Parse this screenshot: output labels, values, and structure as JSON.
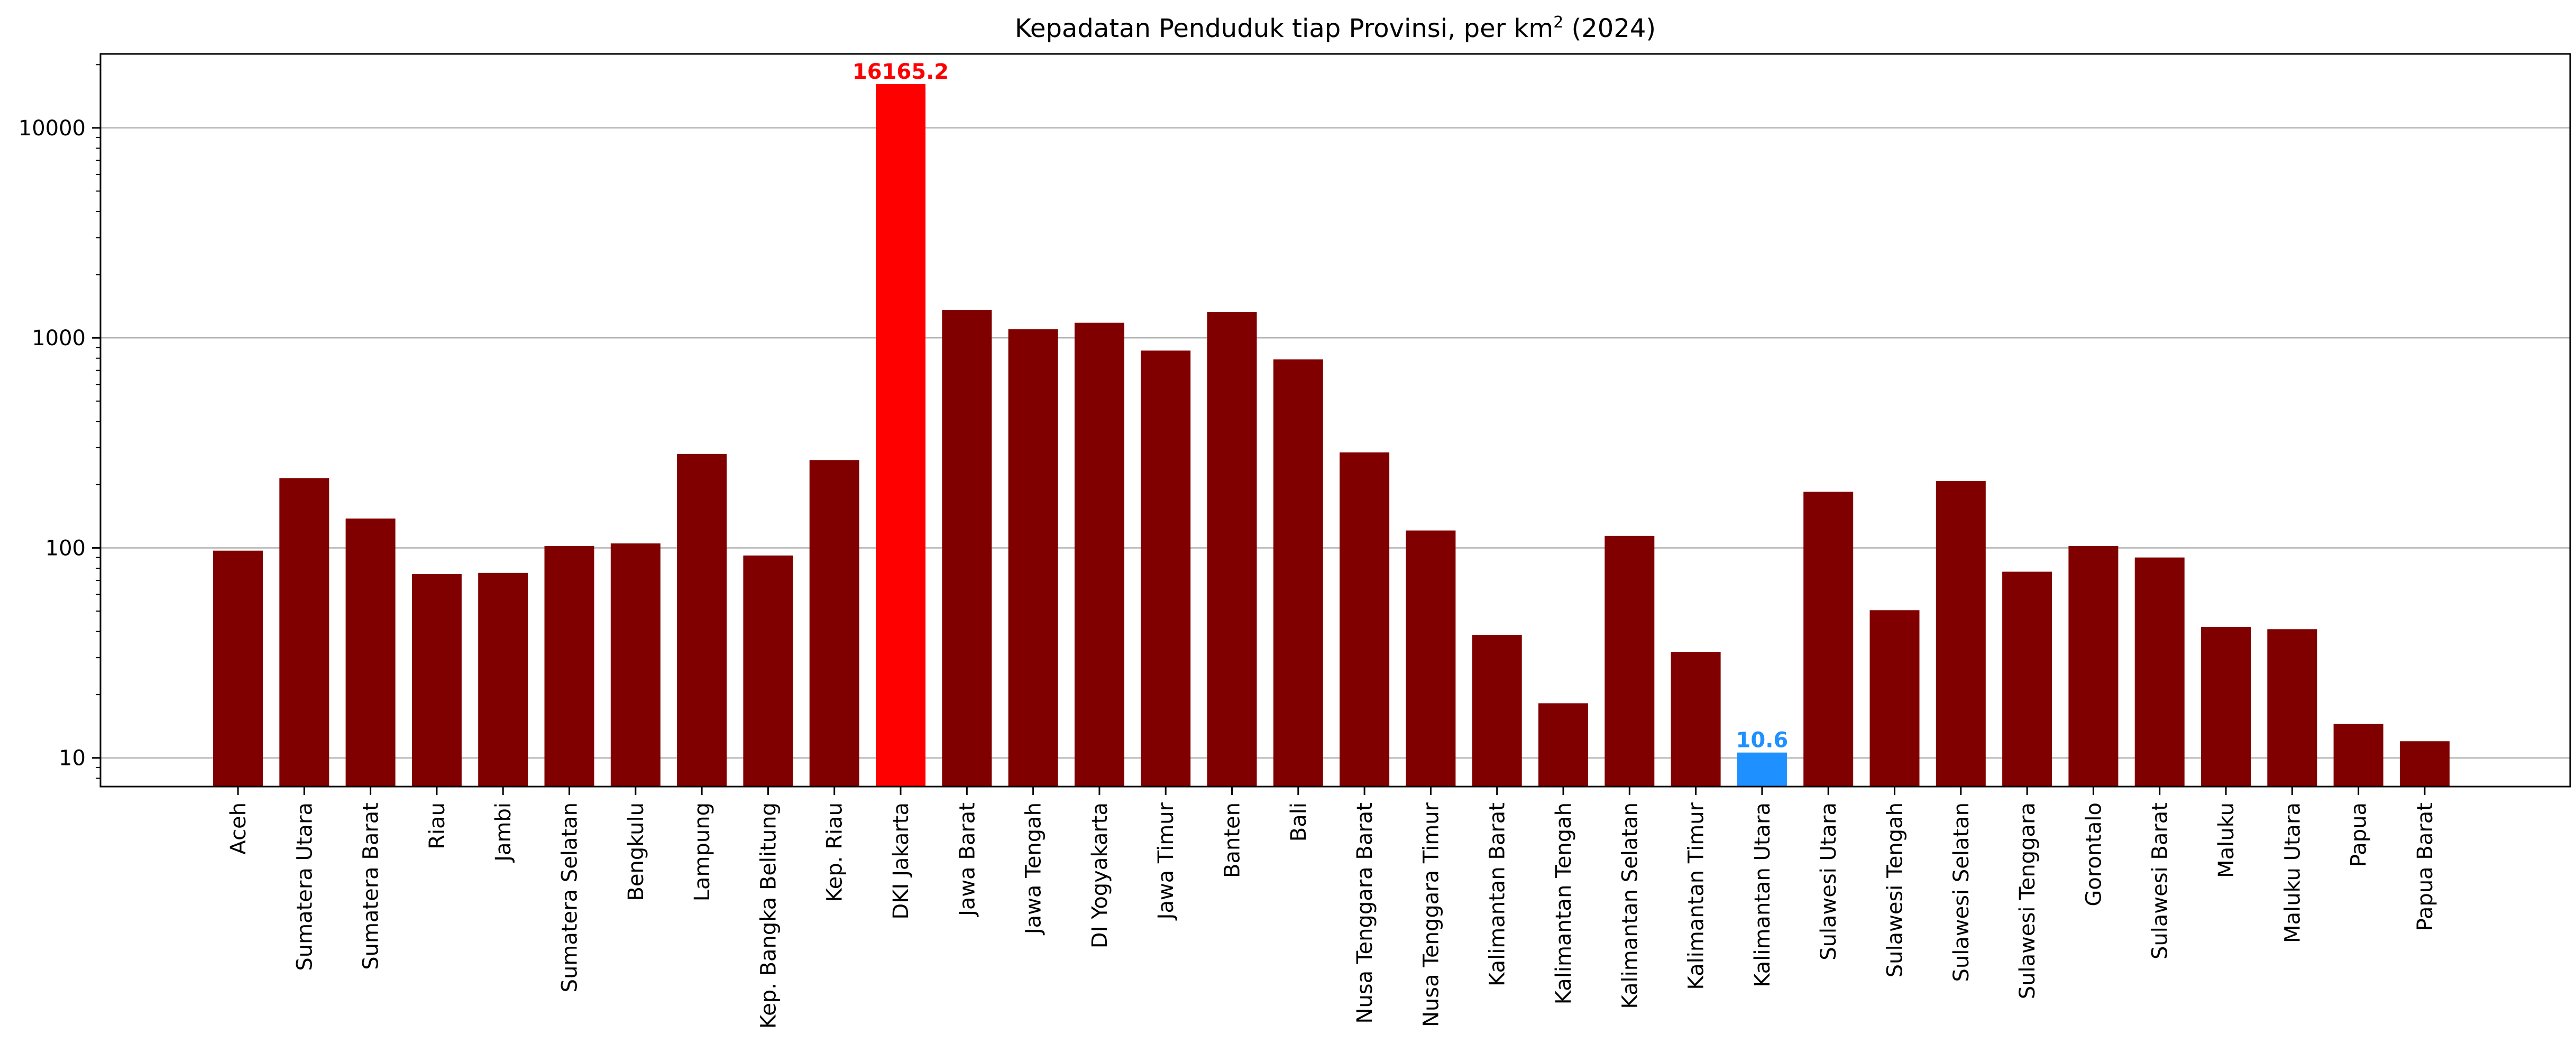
{
  "chart_data": {
    "type": "bar",
    "title_main": "Kepadatan Penduduk tiap Provinsi, per km",
    "title_sup": "2",
    "title_suffix": " (2024)",
    "xlabel": "",
    "ylabel": "",
    "yscale": "log",
    "ylim": [
      7.3,
      22500
    ],
    "y_ticks": [
      10,
      100,
      1000,
      10000
    ],
    "y_tick_labels": [
      "10",
      "100",
      "1000",
      "10000"
    ],
    "grid": "horizontal major",
    "categories": [
      "Aceh",
      "Sumatera Utara",
      "Sumatera Barat",
      "Riau",
      "Jambi",
      "Sumatera Selatan",
      "Bengkulu",
      "Lampung",
      "Kep. Bangka Belitung",
      "Kep. Riau",
      "DKI Jakarta",
      "Jawa Barat",
      "Jawa Tengah",
      "DI Yogyakarta",
      "Jawa Timur",
      "Banten",
      "Bali",
      "Nusa Tenggara Barat",
      "Nusa Tenggara Timur",
      "Kalimantan Barat",
      "Kalimantan Tengah",
      "Kalimantan Selatan",
      "Kalimantan Timur",
      "Kalimantan Utara",
      "Sulawesi Utara",
      "Sulawesi Tengah",
      "Sulawesi Selatan",
      "Sulawesi Tenggara",
      "Gorontalo",
      "Sulawesi Barat",
      "Maluku",
      "Maluku Utara",
      "Papua",
      "Papua Barat"
    ],
    "values": [
      97,
      215,
      138,
      75,
      76,
      102,
      105,
      280,
      92,
      262,
      16165.2,
      1360,
      1100,
      1180,
      870,
      1330,
      790,
      285,
      121,
      38.5,
      18.2,
      114,
      32,
      10.6,
      185,
      50.5,
      208,
      77,
      102,
      90,
      42,
      41,
      14.5,
      12
    ],
    "colors": {
      "default": "#800000",
      "max": "#ff0000",
      "min": "#1e90ff",
      "grid": "#b0b0b0",
      "axis": "#000000"
    },
    "annotations": [
      {
        "category": "DKI Jakarta",
        "text": "16165.2",
        "color": "#ff0000"
      },
      {
        "category": "Kalimantan Utara",
        "text": "10.6",
        "color": "#1e90ff"
      }
    ]
  }
}
